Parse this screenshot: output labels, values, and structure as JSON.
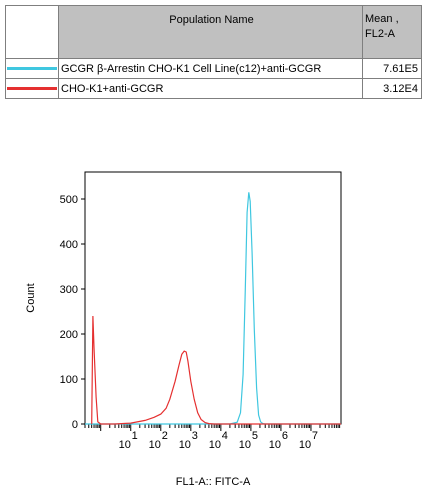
{
  "legend": {
    "header_name": "Population Name",
    "header_mean": "Mean , FL2-A",
    "rows": [
      {
        "name": "GCGR β-Arrestin CHO-K1 Cell Line(c12)+anti-GCGR",
        "mean": "7.61E5",
        "color": "#3fc7e0"
      },
      {
        "name": "CHO-K1+anti-GCGR",
        "mean": "3.12E4",
        "color": "#e53030"
      }
    ]
  },
  "chart_data": {
    "type": "line",
    "title": "",
    "xlabel": "FL1-A:: FITC-A",
    "ylabel": "Count",
    "x_scale": "log",
    "xlim": [
      0.3,
      100000000
    ],
    "ylim": [
      0,
      560
    ],
    "y_ticks": [
      0,
      100,
      200,
      300,
      400,
      500
    ],
    "x_ticks": [
      {
        "value": 10,
        "base": "10",
        "exp": "1"
      },
      {
        "value": 100,
        "base": "10",
        "exp": "2"
      },
      {
        "value": 1000,
        "base": "10",
        "exp": "3"
      },
      {
        "value": 10000,
        "base": "10",
        "exp": "4"
      },
      {
        "value": 100000,
        "base": "10",
        "exp": "5"
      },
      {
        "value": 1000000,
        "base": "10",
        "exp": "6"
      },
      {
        "value": 10000000,
        "base": "10",
        "exp": "7"
      }
    ],
    "series": [
      {
        "name": "GCGR β-Arrestin CHO-K1 Cell Line(c12)+anti-GCGR",
        "color": "#3fc7e0",
        "x": [
          0.3,
          10,
          1000,
          20000,
          35000,
          45000,
          55000,
          65000,
          75000,
          85000,
          95000,
          110000,
          130000,
          155000,
          180000,
          210000,
          250000,
          300000,
          1000000,
          100000000
        ],
        "y": [
          0,
          0,
          0,
          0,
          4,
          25,
          110,
          300,
          470,
          515,
          495,
          380,
          210,
          80,
          20,
          5,
          1,
          0,
          0,
          0
        ]
      },
      {
        "name": "CHO-K1+anti-GCGR",
        "color": "#e53030",
        "x": [
          0.5,
          0.55,
          0.6,
          0.7,
          0.8,
          1,
          3,
          10,
          30,
          60,
          100,
          150,
          200,
          300,
          400,
          500,
          600,
          700,
          800,
          1000,
          1300,
          1700,
          2200,
          3000,
          4000,
          6000,
          10000,
          100000000
        ],
        "y": [
          0,
          240,
          170,
          60,
          5,
          0,
          0,
          2,
          8,
          15,
          22,
          35,
          55,
          95,
          130,
          155,
          162,
          160,
          140,
          95,
          55,
          25,
          10,
          3,
          1,
          0,
          0,
          0
        ]
      }
    ]
  }
}
